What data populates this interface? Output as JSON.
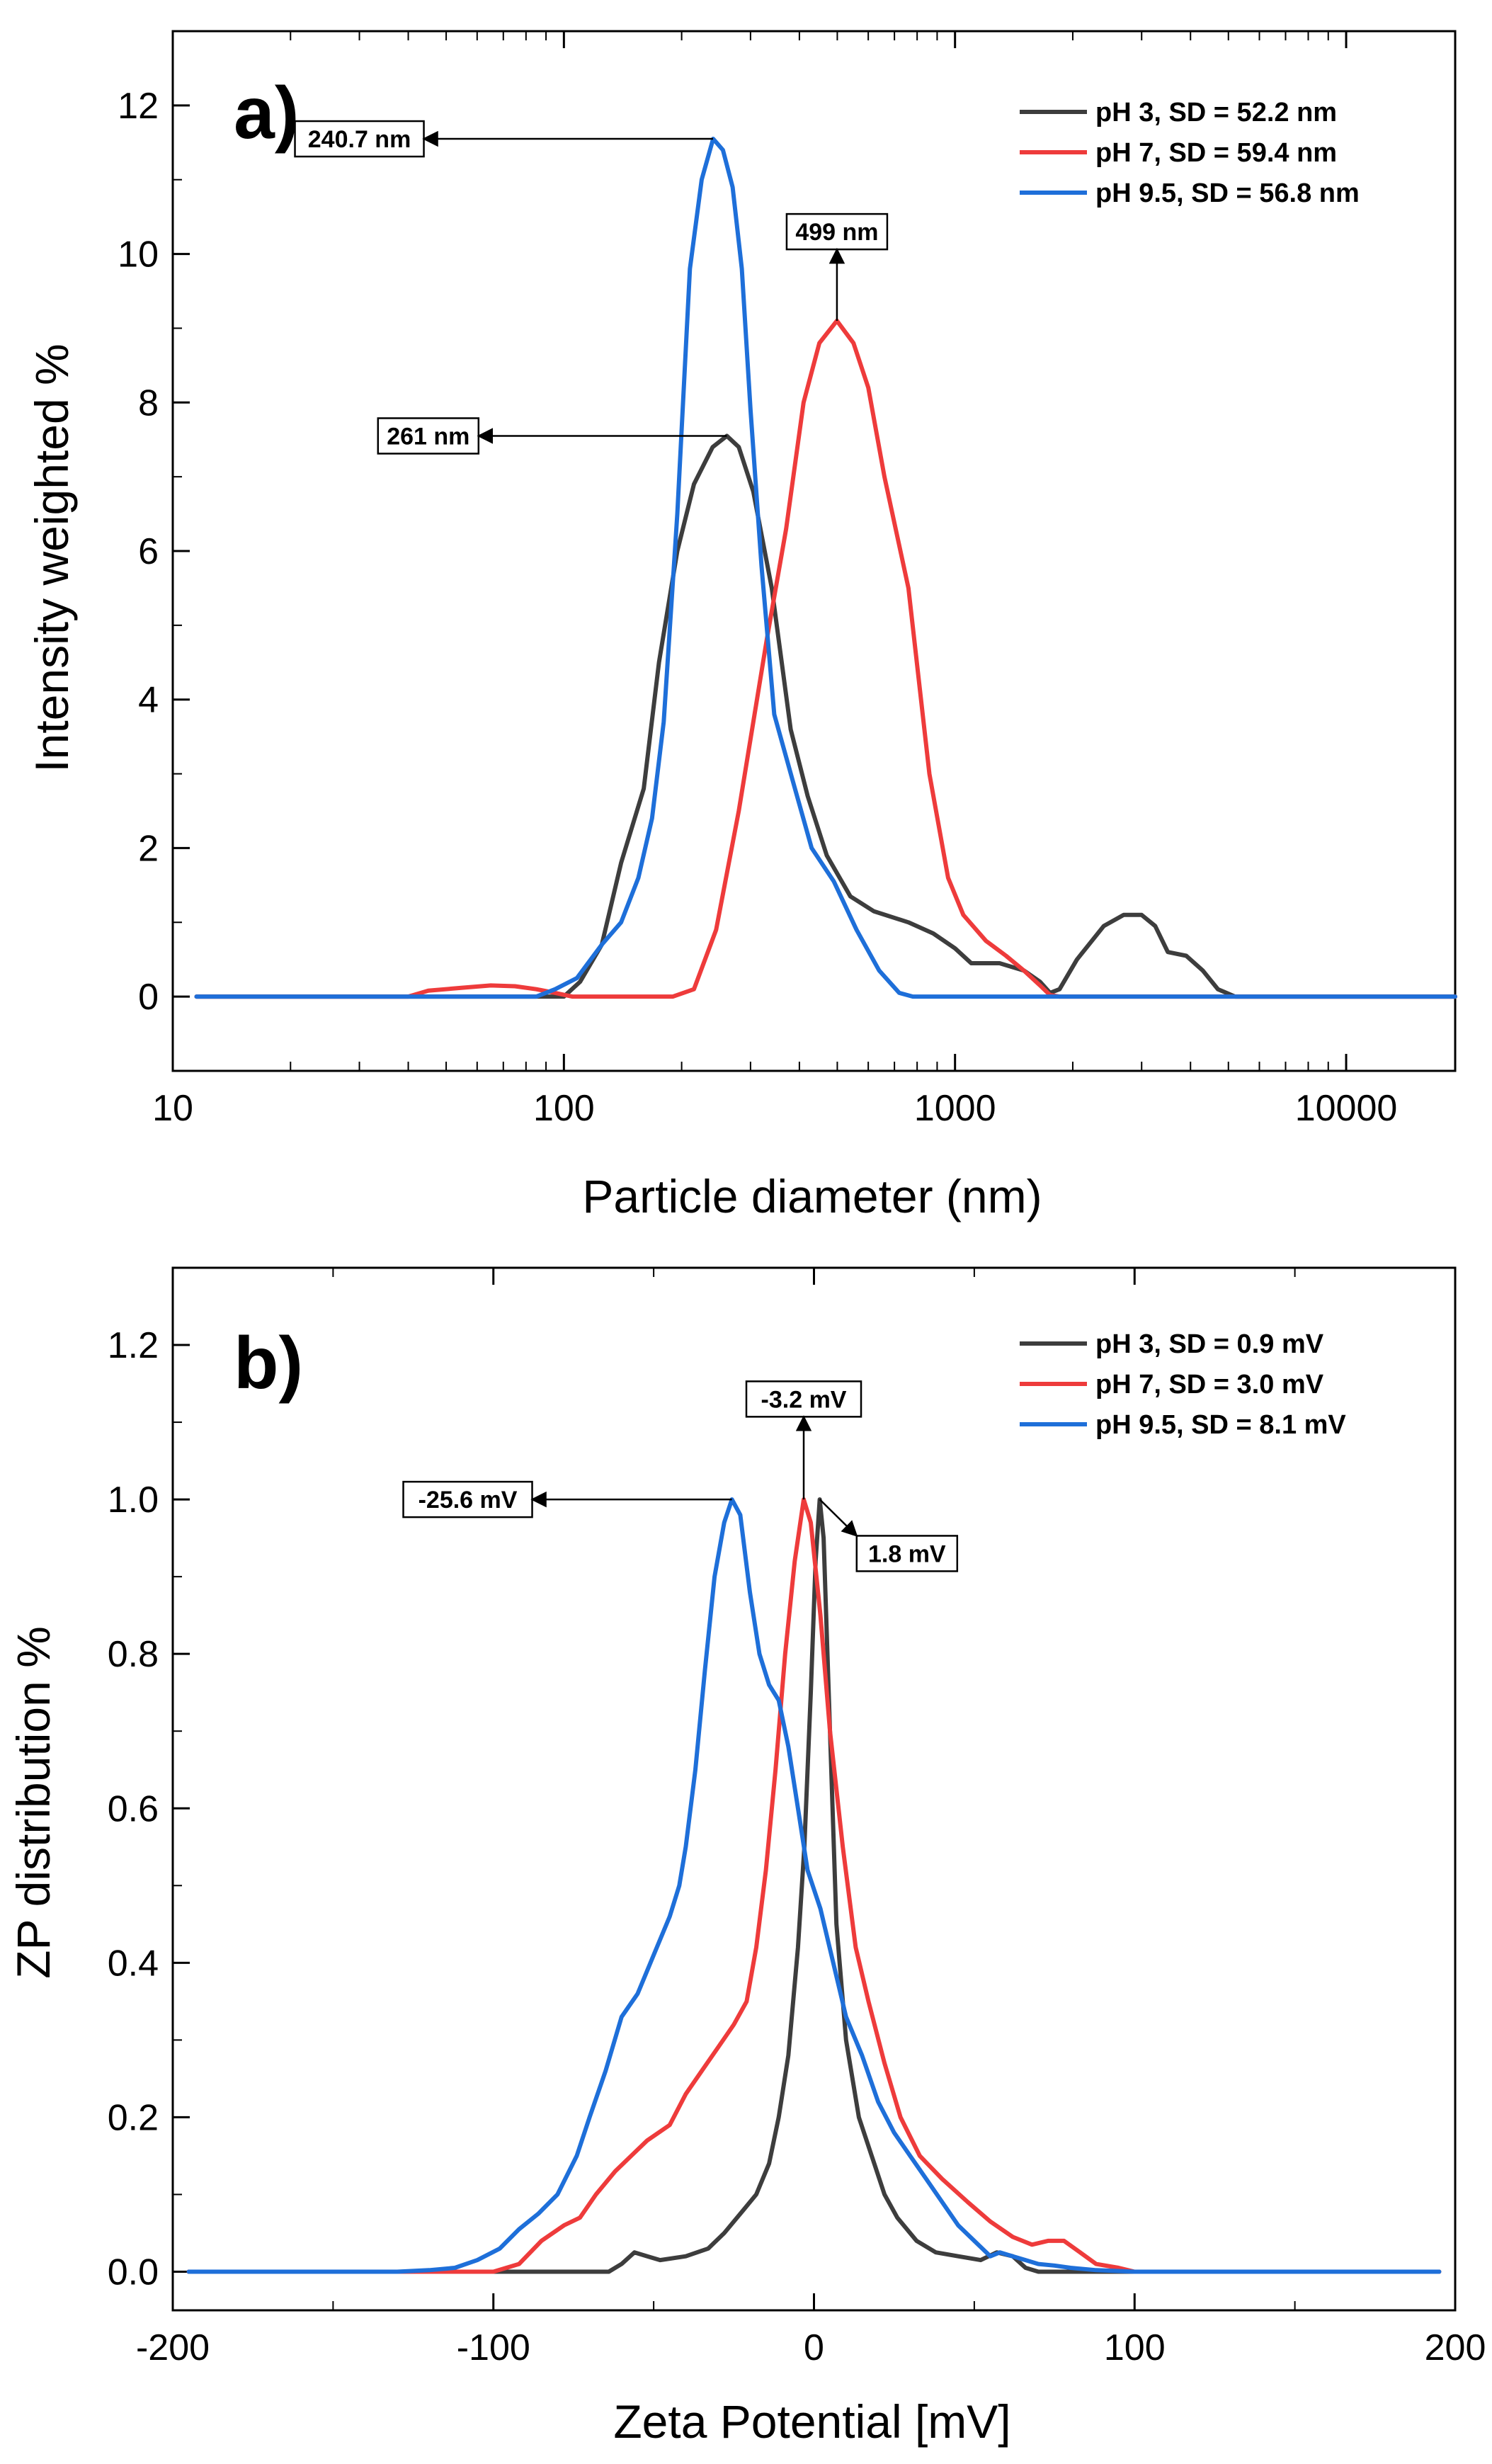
{
  "chart_data": [
    {
      "type": "line",
      "panel_label": "a)",
      "xlabel": "Particle diameter (nm)",
      "ylabel": "Intensity weighted %",
      "xscale": "log",
      "xlim": [
        10,
        19000
      ],
      "ylim": [
        -1,
        13
      ],
      "xticks": [
        10,
        100,
        1000,
        10000
      ],
      "xtick_labels": [
        "10",
        "100",
        "1000",
        "10000"
      ],
      "yticks": [
        0,
        2,
        4,
        6,
        8,
        10,
        12
      ],
      "ytick_labels": [
        "0",
        "2",
        "4",
        "6",
        "8",
        "10",
        "12"
      ],
      "grid": false,
      "legend_position": "top-right",
      "series": [
        {
          "name": "pH 3, SD = 52.2 nm",
          "color": "#3d3d3d",
          "points": [
            [
              11.5,
              0
            ],
            [
              100,
              0
            ],
            [
              110,
              0.2
            ],
            [
              125,
              0.7
            ],
            [
              140,
              1.8
            ],
            [
              160,
              2.8
            ],
            [
              175,
              4.5
            ],
            [
              195,
              6.0
            ],
            [
              215,
              6.9
            ],
            [
              240,
              7.4
            ],
            [
              261,
              7.55
            ],
            [
              280,
              7.4
            ],
            [
              305,
              6.8
            ],
            [
              340,
              5.5
            ],
            [
              380,
              3.6
            ],
            [
              420,
              2.7
            ],
            [
              470,
              1.9
            ],
            [
              540,
              1.35
            ],
            [
              620,
              1.15
            ],
            [
              760,
              1.0
            ],
            [
              880,
              0.85
            ],
            [
              1000,
              0.65
            ],
            [
              1100,
              0.45
            ],
            [
              1300,
              0.45
            ],
            [
              1500,
              0.35
            ],
            [
              1650,
              0.2
            ],
            [
              1750,
              0.05
            ],
            [
              1850,
              0.1
            ],
            [
              2050,
              0.5
            ],
            [
              2400,
              0.95
            ],
            [
              2700,
              1.1
            ],
            [
              3000,
              1.1
            ],
            [
              3250,
              0.95
            ],
            [
              3500,
              0.6
            ],
            [
              3900,
              0.55
            ],
            [
              4300,
              0.35
            ],
            [
              4700,
              0.1
            ],
            [
              5200,
              0
            ],
            [
              6000,
              0
            ],
            [
              19000,
              0
            ]
          ]
        },
        {
          "name": "pH 7, SD = 59.4 nm",
          "color": "#ee3b3b",
          "points": [
            [
              11.5,
              0
            ],
            [
              40,
              0
            ],
            [
              45,
              0.08
            ],
            [
              55,
              0.12
            ],
            [
              65,
              0.15
            ],
            [
              75,
              0.14
            ],
            [
              85,
              0.1
            ],
            [
              95,
              0.05
            ],
            [
              105,
              0
            ],
            [
              190,
              0
            ],
            [
              215,
              0.1
            ],
            [
              245,
              0.9
            ],
            [
              280,
              2.5
            ],
            [
              330,
              4.8
            ],
            [
              370,
              6.3
            ],
            [
              410,
              8.0
            ],
            [
              450,
              8.8
            ],
            [
              499,
              9.1
            ],
            [
              550,
              8.8
            ],
            [
              600,
              8.2
            ],
            [
              660,
              7.0
            ],
            [
              760,
              5.5
            ],
            [
              860,
              3.0
            ],
            [
              960,
              1.6
            ],
            [
              1050,
              1.1
            ],
            [
              1200,
              0.75
            ],
            [
              1350,
              0.55
            ],
            [
              1500,
              0.35
            ],
            [
              1650,
              0.15
            ],
            [
              1750,
              0.02
            ],
            [
              1850,
              0
            ],
            [
              19000,
              0
            ]
          ]
        },
        {
          "name": "pH 9.5, SD = 56.8 nm",
          "color": "#1e6fd9",
          "points": [
            [
              11.5,
              0
            ],
            [
              85,
              0
            ],
            [
              95,
              0.1
            ],
            [
              108,
              0.25
            ],
            [
              125,
              0.7
            ],
            [
              140,
              1.0
            ],
            [
              155,
              1.6
            ],
            [
              168,
              2.4
            ],
            [
              180,
              3.7
            ],
            [
              195,
              6.5
            ],
            [
              210,
              9.8
            ],
            [
              225,
              11.0
            ],
            [
              240.7,
              11.55
            ],
            [
              255,
              11.4
            ],
            [
              270,
              10.9
            ],
            [
              285,
              9.8
            ],
            [
              300,
              7.9
            ],
            [
              320,
              5.8
            ],
            [
              345,
              3.8
            ],
            [
              385,
              2.9
            ],
            [
              430,
              2.0
            ],
            [
              490,
              1.55
            ],
            [
              560,
              0.9
            ],
            [
              640,
              0.35
            ],
            [
              720,
              0.05
            ],
            [
              780,
              0
            ],
            [
              19000,
              0
            ]
          ]
        }
      ],
      "annotations": [
        {
          "text": "240.7 nm",
          "point": [
            240.7,
            11.55
          ],
          "box": [
            30,
            11.55
          ]
        },
        {
          "text": "499 nm",
          "point": [
            499,
            9.1
          ],
          "box": [
            499,
            10.3
          ]
        },
        {
          "text": "261 nm",
          "point": [
            261,
            7.55
          ],
          "box": [
            45,
            7.55
          ]
        }
      ]
    },
    {
      "type": "line",
      "panel_label": "b)",
      "xlabel": "Zeta Potential [mV]",
      "ylabel": "ZP distribution %",
      "xscale": "linear",
      "xlim": [
        -200,
        200
      ],
      "ylim": [
        -0.05,
        1.3
      ],
      "xticks": [
        -200,
        -100,
        0,
        100,
        200
      ],
      "xtick_labels": [
        "-200",
        "-100",
        "0",
        "100",
        "200"
      ],
      "yticks": [
        0,
        0.2,
        0.4,
        0.6,
        0.8,
        1.0,
        1.2
      ],
      "ytick_labels": [
        "0.0",
        "0.2",
        "0.4",
        "0.6",
        "0.8",
        "1.0",
        "1.2"
      ],
      "grid": false,
      "legend_position": "top-right",
      "series": [
        {
          "name": "pH 3, SD = 0.9 mV",
          "color": "#3d3d3d",
          "points": [
            [
              -195,
              0
            ],
            [
              -64,
              0
            ],
            [
              -60,
              0.01
            ],
            [
              -56,
              0.025
            ],
            [
              -52,
              0.02
            ],
            [
              -48,
              0.015
            ],
            [
              -40,
              0.02
            ],
            [
              -33,
              0.03
            ],
            [
              -28,
              0.05
            ],
            [
              -22,
              0.08
            ],
            [
              -18,
              0.1
            ],
            [
              -14,
              0.14
            ],
            [
              -11,
              0.2
            ],
            [
              -8,
              0.28
            ],
            [
              -5,
              0.42
            ],
            [
              -3,
              0.55
            ],
            [
              -1,
              0.75
            ],
            [
              0.5,
              0.92
            ],
            [
              1.8,
              1.0
            ],
            [
              3,
              0.95
            ],
            [
              5,
              0.7
            ],
            [
              7,
              0.45
            ],
            [
              10,
              0.3
            ],
            [
              14,
              0.2
            ],
            [
              18,
              0.15
            ],
            [
              22,
              0.1
            ],
            [
              26,
              0.07
            ],
            [
              32,
              0.04
            ],
            [
              38,
              0.025
            ],
            [
              45,
              0.02
            ],
            [
              52,
              0.015
            ],
            [
              57,
              0.025
            ],
            [
              62,
              0.02
            ],
            [
              66,
              0.005
            ],
            [
              70,
              0
            ],
            [
              195,
              0
            ]
          ]
        },
        {
          "name": "pH 7, SD = 3.0 mV",
          "color": "#ee3b3b",
          "points": [
            [
              -195,
              0
            ],
            [
              -100,
              0
            ],
            [
              -92,
              0.01
            ],
            [
              -85,
              0.04
            ],
            [
              -78,
              0.06
            ],
            [
              -73,
              0.07
            ],
            [
              -68,
              0.1
            ],
            [
              -62,
              0.13
            ],
            [
              -57,
              0.15
            ],
            [
              -52,
              0.17
            ],
            [
              -45,
              0.19
            ],
            [
              -40,
              0.23
            ],
            [
              -35,
              0.26
            ],
            [
              -30,
              0.29
            ],
            [
              -25,
              0.32
            ],
            [
              -21,
              0.35
            ],
            [
              -18,
              0.42
            ],
            [
              -15,
              0.52
            ],
            [
              -12,
              0.65
            ],
            [
              -9,
              0.8
            ],
            [
              -6,
              0.92
            ],
            [
              -3.2,
              1.0
            ],
            [
              -1,
              0.97
            ],
            [
              2,
              0.85
            ],
            [
              5,
              0.7
            ],
            [
              9,
              0.55
            ],
            [
              13,
              0.42
            ],
            [
              17,
              0.35
            ],
            [
              22,
              0.27
            ],
            [
              27,
              0.2
            ],
            [
              33,
              0.15
            ],
            [
              40,
              0.12
            ],
            [
              48,
              0.09
            ],
            [
              55,
              0.065
            ],
            [
              62,
              0.045
            ],
            [
              68,
              0.035
            ],
            [
              73,
              0.04
            ],
            [
              78,
              0.04
            ],
            [
              83,
              0.025
            ],
            [
              88,
              0.01
            ],
            [
              95,
              0.005
            ],
            [
              100,
              0
            ],
            [
              195,
              0
            ]
          ]
        },
        {
          "name": "pH 9.5, SD = 8.1 mV",
          "color": "#1e6fd9",
          "points": [
            [
              -195,
              0
            ],
            [
              -130,
              0
            ],
            [
              -120,
              0.002
            ],
            [
              -112,
              0.005
            ],
            [
              -105,
              0.015
            ],
            [
              -98,
              0.03
            ],
            [
              -92,
              0.055
            ],
            [
              -86,
              0.075
            ],
            [
              -80,
              0.1
            ],
            [
              -74,
              0.15
            ],
            [
              -70,
              0.2
            ],
            [
              -65,
              0.26
            ],
            [
              -60,
              0.33
            ],
            [
              -55,
              0.36
            ],
            [
              -50,
              0.41
            ],
            [
              -45,
              0.46
            ],
            [
              -42,
              0.5
            ],
            [
              -40,
              0.55
            ],
            [
              -37,
              0.65
            ],
            [
              -34,
              0.78
            ],
            [
              -31,
              0.9
            ],
            [
              -28,
              0.97
            ],
            [
              -25.6,
              1.0
            ],
            [
              -23,
              0.98
            ],
            [
              -20,
              0.88
            ],
            [
              -17,
              0.8
            ],
            [
              -14,
              0.76
            ],
            [
              -11,
              0.74
            ],
            [
              -8,
              0.68
            ],
            [
              -5,
              0.6
            ],
            [
              -2,
              0.52
            ],
            [
              2,
              0.47
            ],
            [
              6,
              0.4
            ],
            [
              10,
              0.33
            ],
            [
              15,
              0.28
            ],
            [
              20,
              0.22
            ],
            [
              25,
              0.18
            ],
            [
              30,
              0.15
            ],
            [
              35,
              0.12
            ],
            [
              40,
              0.09
            ],
            [
              45,
              0.06
            ],
            [
              50,
              0.04
            ],
            [
              55,
              0.02
            ],
            [
              58,
              0.025
            ],
            [
              62,
              0.02
            ],
            [
              66,
              0.015
            ],
            [
              70,
              0.01
            ],
            [
              75,
              0.008
            ],
            [
              80,
              0.005
            ],
            [
              88,
              0.002
            ],
            [
              100,
              0
            ],
            [
              195,
              0
            ]
          ]
        }
      ],
      "annotations": [
        {
          "text": "-25.6 mV",
          "point": [
            -25.6,
            1.0
          ],
          "box": [
            -108,
            1.0
          ]
        },
        {
          "text": "-3.2 mV",
          "point": [
            -3.2,
            1.0
          ],
          "box": [
            -3.2,
            1.13
          ]
        },
        {
          "text": "1.8 mV",
          "point": [
            1.8,
            1.0
          ],
          "box": [
            29,
            0.93
          ]
        }
      ]
    }
  ]
}
